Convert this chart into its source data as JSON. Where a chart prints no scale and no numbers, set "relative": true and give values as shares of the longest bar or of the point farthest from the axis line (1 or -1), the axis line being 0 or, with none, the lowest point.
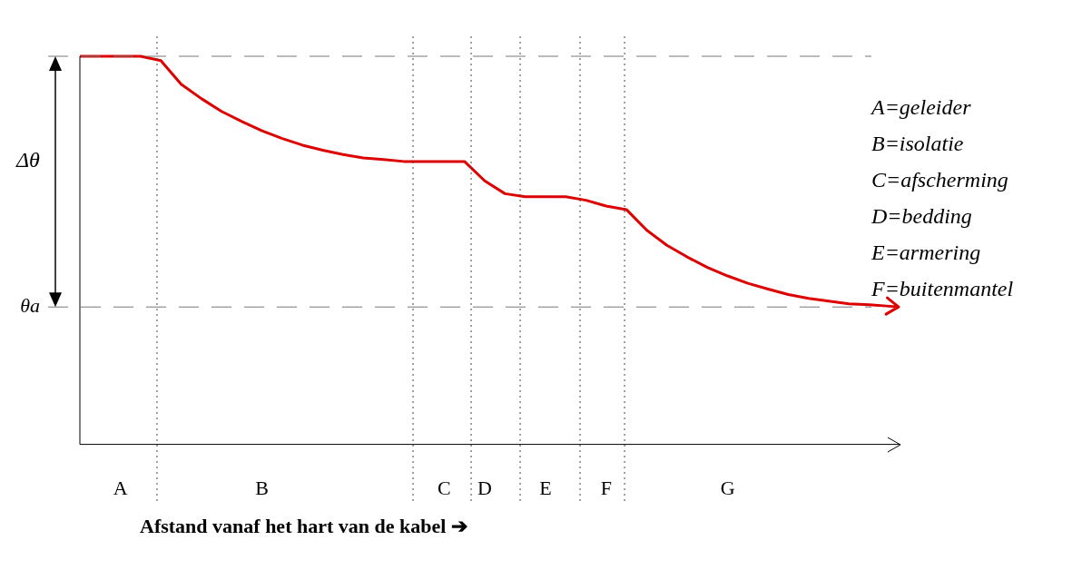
{
  "chart_data": {
    "type": "line",
    "relative": true,
    "legend": false,
    "marker": "none",
    "line_style": "solid",
    "xlabel": "Afstand vanaf het hart van de kabel ➔",
    "categories": [
      null,
      null,
      "A",
      null,
      null,
      null,
      null,
      null,
      null,
      "B",
      null,
      null,
      null,
      null,
      null,
      null,
      null,
      null,
      "C",
      null,
      "D",
      null,
      null,
      "E",
      null,
      null,
      "F",
      null,
      null,
      null,
      null,
      null,
      "G",
      null,
      null,
      null,
      null,
      null,
      null,
      null,
      null
    ],
    "series": [
      {
        "color": "#dd0000",
        "values": [
          1,
          1,
          1,
          1,
          0.989,
          0.928,
          0.891,
          0.858,
          0.832,
          0.808,
          0.788,
          0.771,
          0.758,
          0.747,
          0.738,
          0.734,
          0.729,
          0.729,
          0.729,
          0.729,
          0.679,
          0.646,
          0.638,
          0.638,
          0.638,
          0.629,
          0.614,
          0.605,
          0.552,
          0.513,
          0.483,
          0.456,
          0.434,
          0.415,
          0.4,
          0.386,
          0.376,
          0.369,
          0.362,
          0.36,
          0.356
        ]
      }
    ],
    "ref_lines": [
      {
        "axis": "y",
        "value": 1,
        "line_style": "dashed"
      },
      {
        "axis": "y",
        "value": 0.354,
        "label": "θa",
        "line_style": "dashed"
      }
    ],
    "annotations": [
      "Δθ",
      "A=geleider",
      "B=isolatie",
      "C=afscherming",
      "D=bedding",
      "E=armering",
      "F=buitenmantel"
    ]
  }
}
